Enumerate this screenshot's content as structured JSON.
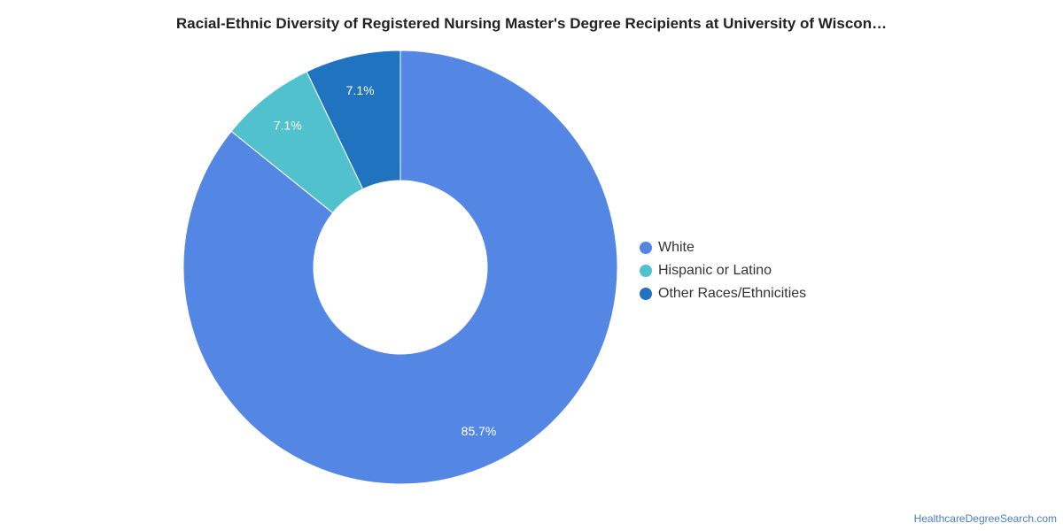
{
  "chart_data": {
    "type": "pie",
    "title": "Racial-Ethnic Diversity of Registered Nursing Master's Degree Recipients at University of Wiscon…",
    "series": [
      {
        "name": "White",
        "value": 85.7,
        "label": "85.7%",
        "color": "#5486e3"
      },
      {
        "name": "Hispanic or Latino",
        "value": 7.1,
        "label": "7.1%",
        "color": "#52c1ce"
      },
      {
        "name": "Other Races/Ethnicities",
        "value": 7.1,
        "label": "7.1%",
        "color": "#1f73bf"
      }
    ],
    "legend_position": "right"
  },
  "source": "HealthcareDegreeSearch.com"
}
